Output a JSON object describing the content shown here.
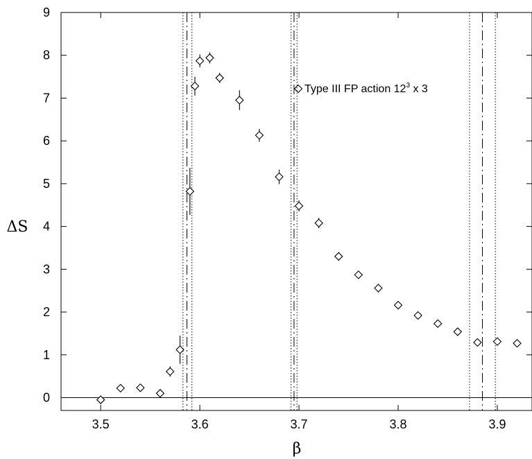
{
  "chart_data": {
    "type": "scatter",
    "xlabel": "β",
    "ylabel": "ΔS",
    "xlim": [
      3.46,
      3.935
    ],
    "ylim": [
      -0.3,
      9.0
    ],
    "xticks": [
      3.5,
      3.6,
      3.7,
      3.8,
      3.9
    ],
    "xtick_labels": [
      "3.5",
      "3.6",
      "3.7",
      "3.8",
      "3.9"
    ],
    "yticks": [
      0,
      1,
      2,
      3,
      4,
      5,
      6,
      7,
      8,
      9
    ],
    "ytick_labels": [
      "0",
      "1",
      "2",
      "3",
      "4",
      "5",
      "6",
      "7",
      "8",
      "9"
    ],
    "zero_line": 0,
    "grid": false,
    "legend_position": "top-right",
    "series": [
      {
        "name": "Type III FP action  12³ x 3",
        "marker": "diamond",
        "points": [
          {
            "x": 3.5,
            "y": -0.05,
            "err": 0.1
          },
          {
            "x": 3.52,
            "y": 0.22,
            "err": 0.06
          },
          {
            "x": 3.54,
            "y": 0.23,
            "err": 0.06
          },
          {
            "x": 3.56,
            "y": 0.1,
            "err": 0.1
          },
          {
            "x": 3.57,
            "y": 0.61,
            "err": 0.12
          },
          {
            "x": 3.58,
            "y": 1.12,
            "err": 0.33
          },
          {
            "x": 3.59,
            "y": 4.82,
            "err": 0.55
          },
          {
            "x": 3.595,
            "y": 7.28,
            "err": 0.22
          },
          {
            "x": 3.6,
            "y": 7.87,
            "err": 0.15
          },
          {
            "x": 3.61,
            "y": 7.94,
            "err": 0.13
          },
          {
            "x": 3.62,
            "y": 7.47,
            "err": 0.12
          },
          {
            "x": 3.64,
            "y": 6.95,
            "err": 0.23
          },
          {
            "x": 3.66,
            "y": 6.13,
            "err": 0.15
          },
          {
            "x": 3.68,
            "y": 5.16,
            "err": 0.17
          },
          {
            "x": 3.7,
            "y": 4.48,
            "err": 0.13
          },
          {
            "x": 3.72,
            "y": 4.08,
            "err": 0.12
          },
          {
            "x": 3.74,
            "y": 3.3,
            "err": 0.1
          },
          {
            "x": 3.76,
            "y": 2.87,
            "err": 0.09
          },
          {
            "x": 3.78,
            "y": 2.56,
            "err": 0.1
          },
          {
            "x": 3.8,
            "y": 2.16,
            "err": 0.07
          },
          {
            "x": 3.82,
            "y": 1.92,
            "err": 0.07
          },
          {
            "x": 3.84,
            "y": 1.73,
            "err": 0.07
          },
          {
            "x": 3.86,
            "y": 1.54,
            "err": 0.06
          },
          {
            "x": 3.88,
            "y": 1.29,
            "err": 0.06
          },
          {
            "x": 3.9,
            "y": 1.31,
            "err": 0.06
          },
          {
            "x": 3.92,
            "y": 1.27,
            "err": 0.05
          }
        ]
      }
    ],
    "vertical_lines": [
      {
        "x": 3.583,
        "style": "dotted"
      },
      {
        "x": 3.587,
        "style": "dashdot"
      },
      {
        "x": 3.592,
        "style": "dotted"
      },
      {
        "x": 3.692,
        "style": "dotted"
      },
      {
        "x": 3.695,
        "style": "dashdot"
      },
      {
        "x": 3.698,
        "style": "dotted"
      },
      {
        "x": 3.872,
        "style": "dotted"
      },
      {
        "x": 3.885,
        "style": "dashdot"
      },
      {
        "x": 3.898,
        "style": "dotted"
      }
    ]
  }
}
